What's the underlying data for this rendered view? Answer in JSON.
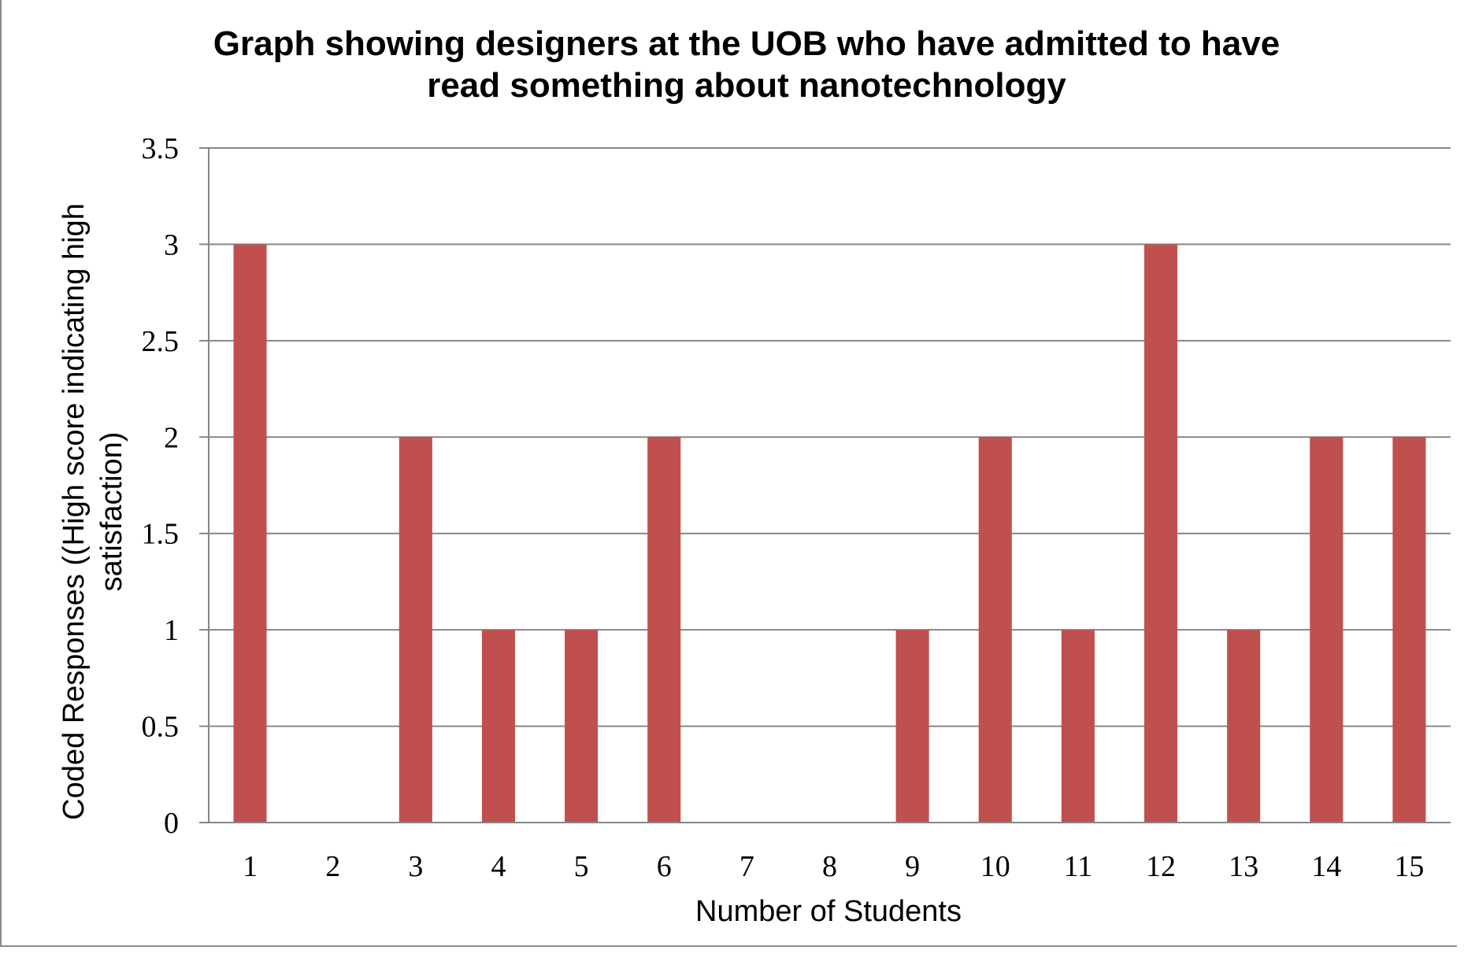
{
  "chart_data": {
    "type": "bar",
    "title_lines": [
      "Graph showing designers at the UOB who have admitted to have",
      "read something about nanotechnology"
    ],
    "xlabel": "Number of Students",
    "ylabel_lines": [
      "Coded Responses ((High score indicating high",
      "satisfaction)"
    ],
    "categories": [
      "1",
      "2",
      "3",
      "4",
      "5",
      "6",
      "7",
      "8",
      "9",
      "10",
      "11",
      "12",
      "13",
      "14",
      "15"
    ],
    "values": [
      3,
      0,
      2,
      1,
      1,
      2,
      0,
      0,
      1,
      2,
      1,
      3,
      1,
      2,
      2
    ],
    "ylim": [
      0,
      3.5
    ],
    "yticks": [
      "0",
      "0.5",
      "1",
      "1.5",
      "2",
      "2.5",
      "3",
      "3.5"
    ],
    "grid": true,
    "colors": {
      "bar": "#c0504d",
      "grid": "#868686",
      "axis": "#868686"
    }
  }
}
